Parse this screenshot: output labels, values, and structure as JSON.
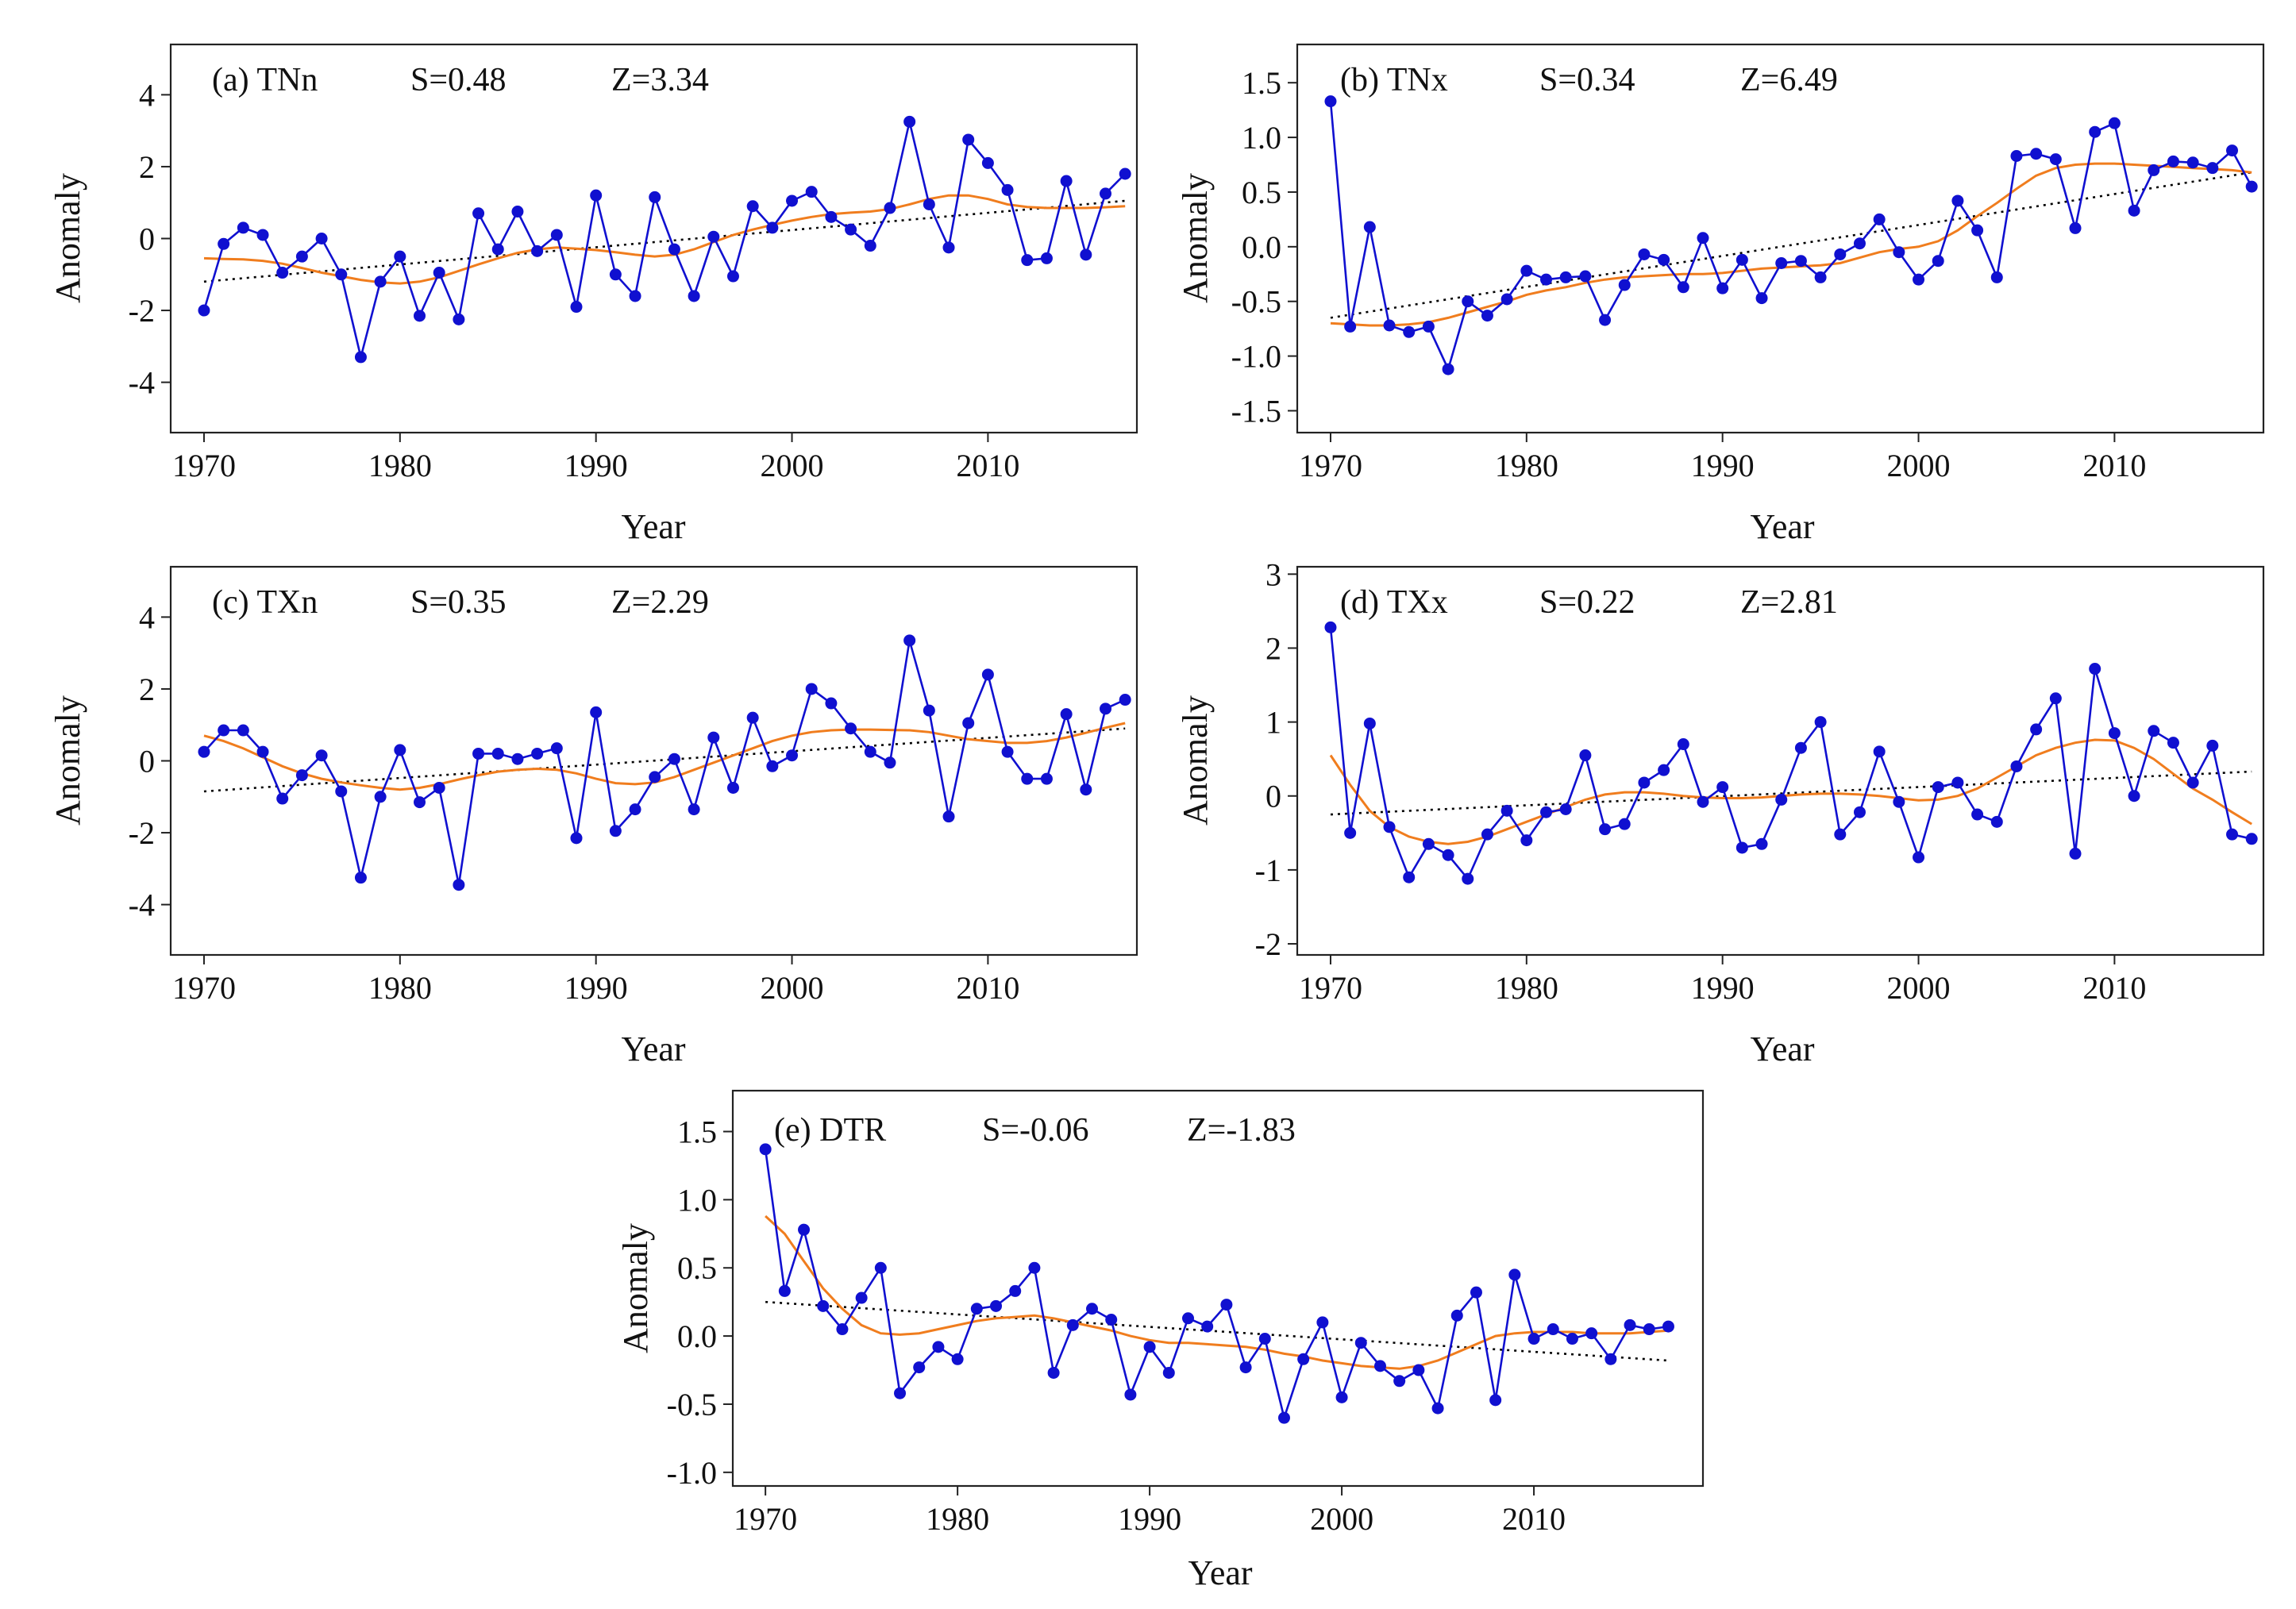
{
  "colors": {
    "observed": "#1010d0",
    "smooth": "#f07d1e",
    "trend": "#000000",
    "axis": "#222222"
  },
  "chart_data": [
    {
      "type": "line",
      "id": "a",
      "title": "(a) TNn",
      "s_text": "S=0.48",
      "z_text": "Z=3.34",
      "xlabel": "Year",
      "ylabel": "Anomaly",
      "xlim": [
        1968.3,
        2017.6
      ],
      "ylim": [
        -5.4,
        5.4
      ],
      "xticks": [
        1970,
        1980,
        1990,
        2000,
        2010
      ],
      "yticks": [
        "-4",
        "-2",
        "0",
        "2",
        "4"
      ],
      "x": [
        1970,
        1971,
        1972,
        1973,
        1974,
        1975,
        1976,
        1977,
        1978,
        1979,
        1980,
        1981,
        1982,
        1983,
        1984,
        1985,
        1986,
        1987,
        1988,
        1989,
        1990,
        1991,
        1992,
        1993,
        1994,
        1995,
        1996,
        1997,
        1998,
        1999,
        2000,
        2001,
        2002,
        2003,
        2004,
        2005,
        2006,
        2007,
        2008,
        2009,
        2010,
        2011,
        2012,
        2013,
        2014,
        2015,
        2016,
        2017
      ],
      "values": [
        -2.0,
        -0.15,
        0.3,
        0.1,
        -0.95,
        -0.5,
        0.0,
        -1.0,
        -3.3,
        -1.2,
        -0.5,
        -2.15,
        -0.95,
        -2.25,
        0.7,
        -0.3,
        0.75,
        -0.35,
        0.1,
        -1.9,
        1.2,
        -1.0,
        -1.6,
        1.15,
        -0.3,
        -1.6,
        0.05,
        -1.05,
        0.9,
        0.3,
        1.05,
        1.3,
        0.6,
        0.25,
        -0.2,
        0.85,
        3.25,
        0.95,
        -0.25,
        2.75,
        2.1,
        1.35,
        -0.6,
        -0.55,
        1.6,
        -0.45,
        1.25,
        1.8
      ],
      "smooth": [
        -0.55,
        -0.57,
        -0.58,
        -0.62,
        -0.7,
        -0.82,
        -0.95,
        -1.05,
        -1.15,
        -1.22,
        -1.25,
        -1.2,
        -1.08,
        -0.9,
        -0.72,
        -0.55,
        -0.4,
        -0.3,
        -0.25,
        -0.28,
        -0.32,
        -0.38,
        -0.45,
        -0.5,
        -0.45,
        -0.3,
        -0.1,
        0.1,
        0.25,
        0.38,
        0.5,
        0.6,
        0.68,
        0.72,
        0.75,
        0.82,
        0.95,
        1.1,
        1.2,
        1.2,
        1.1,
        0.95,
        0.88,
        0.85,
        0.85,
        0.85,
        0.87,
        0.9
      ],
      "trend": [
        [
          1970,
          -1.2
        ],
        [
          2017,
          1.05
        ]
      ]
    },
    {
      "type": "line",
      "id": "b",
      "title": "(b) TNx",
      "s_text": "S=0.34",
      "z_text": "Z=6.49",
      "xlabel": "Year",
      "ylabel": "Anomaly",
      "xlim": [
        1968.3,
        2017.6
      ],
      "ylim": [
        -1.7,
        1.85
      ],
      "xticks": [
        1970,
        1980,
        1990,
        2000,
        2010
      ],
      "yticks": [
        "1.5",
        "1.0",
        "0.5",
        "0.0",
        "-0.5",
        "-1.0",
        "-1.5"
      ],
      "x": [
        1970,
        1971,
        1972,
        1973,
        1974,
        1975,
        1976,
        1977,
        1978,
        1979,
        1980,
        1981,
        1982,
        1983,
        1984,
        1985,
        1986,
        1987,
        1988,
        1989,
        1990,
        1991,
        1992,
        1993,
        1994,
        1995,
        1996,
        1997,
        1998,
        1999,
        2000,
        2001,
        2002,
        2003,
        2004,
        2005,
        2006,
        2007,
        2008,
        2009,
        2010,
        2011,
        2012,
        2013,
        2014,
        2015,
        2016,
        2017
      ],
      "values": [
        1.33,
        -0.73,
        0.18,
        -0.72,
        -0.78,
        -0.73,
        -1.12,
        -0.5,
        -0.63,
        -0.48,
        -0.22,
        -0.3,
        -0.28,
        -0.27,
        -0.67,
        -0.35,
        -0.07,
        -0.12,
        -0.37,
        0.08,
        -0.38,
        -0.12,
        -0.47,
        -0.15,
        -0.13,
        -0.28,
        -0.07,
        0.03,
        0.25,
        -0.05,
        -0.3,
        -0.13,
        0.42,
        0.15,
        -0.28,
        0.83,
        0.85,
        0.8,
        0.17,
        1.05,
        1.13,
        0.33,
        0.7,
        0.78,
        0.77,
        0.72,
        0.88,
        0.55
      ],
      "smooth": [
        -0.7,
        -0.71,
        -0.72,
        -0.72,
        -0.71,
        -0.69,
        -0.65,
        -0.6,
        -0.55,
        -0.5,
        -0.44,
        -0.4,
        -0.37,
        -0.33,
        -0.3,
        -0.28,
        -0.27,
        -0.26,
        -0.25,
        -0.25,
        -0.24,
        -0.22,
        -0.2,
        -0.19,
        -0.18,
        -0.17,
        -0.15,
        -0.1,
        -0.05,
        -0.02,
        0.0,
        0.05,
        0.15,
        0.28,
        0.4,
        0.53,
        0.65,
        0.72,
        0.75,
        0.76,
        0.76,
        0.75,
        0.74,
        0.73,
        0.72,
        0.71,
        0.7,
        0.68
      ],
      "trend": [
        [
          1970,
          -0.65
        ],
        [
          2017,
          0.68
        ]
      ]
    },
    {
      "type": "line",
      "id": "c",
      "title": "(c) TXn",
      "s_text": "S=0.35",
      "z_text": "Z=2.29",
      "xlabel": "Year",
      "ylabel": "Anomaly",
      "xlim": [
        1968.3,
        2017.6
      ],
      "ylim": [
        -5.4,
        5.4
      ],
      "xticks": [
        1970,
        1980,
        1990,
        2000,
        2010
      ],
      "yticks": [
        "-4",
        "-2",
        "0",
        "2",
        "4"
      ],
      "x": [
        1970,
        1971,
        1972,
        1973,
        1974,
        1975,
        1976,
        1977,
        1978,
        1979,
        1980,
        1981,
        1982,
        1983,
        1984,
        1985,
        1986,
        1987,
        1988,
        1989,
        1990,
        1991,
        1992,
        1993,
        1994,
        1995,
        1996,
        1997,
        1998,
        1999,
        2000,
        2001,
        2002,
        2003,
        2004,
        2005,
        2006,
        2007,
        2008,
        2009,
        2010,
        2011,
        2012,
        2013,
        2014,
        2015,
        2016,
        2017
      ],
      "values": [
        0.25,
        0.85,
        0.85,
        0.25,
        -1.05,
        -0.4,
        0.15,
        -0.85,
        -3.25,
        -1.0,
        0.3,
        -1.15,
        -0.75,
        -3.45,
        0.2,
        0.2,
        0.05,
        0.2,
        0.35,
        -2.15,
        1.35,
        -1.95,
        -1.35,
        -0.45,
        0.05,
        -1.35,
        0.65,
        -0.75,
        1.2,
        -0.15,
        0.15,
        2.0,
        1.6,
        0.9,
        0.25,
        -0.05,
        3.35,
        1.4,
        -1.55,
        1.05,
        2.4,
        0.25,
        -0.5,
        -0.5,
        1.3,
        -0.8,
        1.45,
        1.7
      ],
      "smooth": [
        0.7,
        0.55,
        0.35,
        0.1,
        -0.15,
        -0.35,
        -0.5,
        -0.6,
        -0.68,
        -0.75,
        -0.8,
        -0.75,
        -0.65,
        -0.52,
        -0.4,
        -0.3,
        -0.25,
        -0.22,
        -0.25,
        -0.35,
        -0.5,
        -0.62,
        -0.65,
        -0.6,
        -0.45,
        -0.25,
        -0.05,
        0.15,
        0.35,
        0.55,
        0.7,
        0.8,
        0.85,
        0.87,
        0.87,
        0.86,
        0.85,
        0.8,
        0.7,
        0.6,
        0.55,
        0.5,
        0.5,
        0.55,
        0.65,
        0.78,
        0.92,
        1.05
      ],
      "trend": [
        [
          1970,
          -0.85
        ],
        [
          2017,
          0.9
        ]
      ]
    },
    {
      "type": "line",
      "id": "d",
      "title": "(d) TXx",
      "s_text": "S=0.22",
      "z_text": "Z=2.81",
      "xlabel": "Year",
      "ylabel": "Anomaly",
      "xlim": [
        1968.3,
        2017.6
      ],
      "ylim": [
        -2.15,
        3.1
      ],
      "xticks": [
        1970,
        1980,
        1990,
        2000,
        2010
      ],
      "yticks": [
        "3",
        "2",
        "1",
        "0",
        "-1",
        "-2"
      ],
      "x": [
        1970,
        1971,
        1972,
        1973,
        1974,
        1975,
        1976,
        1977,
        1978,
        1979,
        1980,
        1981,
        1982,
        1983,
        1984,
        1985,
        1986,
        1987,
        1988,
        1989,
        1990,
        1991,
        1992,
        1993,
        1994,
        1995,
        1996,
        1997,
        1998,
        1999,
        2000,
        2001,
        2002,
        2003,
        2004,
        2005,
        2006,
        2007,
        2008,
        2009,
        2010,
        2011,
        2012,
        2013,
        2014,
        2015,
        2016,
        2017
      ],
      "values": [
        2.28,
        -0.5,
        0.98,
        -0.42,
        -1.1,
        -0.65,
        -0.8,
        -1.12,
        -0.52,
        -0.2,
        -0.6,
        -0.22,
        -0.18,
        0.55,
        -0.45,
        -0.38,
        0.18,
        0.35,
        0.7,
        -0.08,
        0.12,
        -0.7,
        -0.65,
        -0.05,
        0.65,
        1.0,
        -0.52,
        -0.22,
        0.6,
        -0.08,
        -0.83,
        0.12,
        0.18,
        -0.25,
        -0.35,
        0.4,
        0.9,
        1.32,
        -0.78,
        1.72,
        0.85,
        0.0,
        0.88,
        0.72,
        0.18,
        0.68,
        -0.52,
        -0.58
      ],
      "smooth": [
        0.55,
        0.15,
        -0.2,
        -0.42,
        -0.55,
        -0.62,
        -0.65,
        -0.62,
        -0.55,
        -0.45,
        -0.35,
        -0.25,
        -0.15,
        -0.05,
        0.02,
        0.05,
        0.05,
        0.03,
        0.0,
        -0.02,
        -0.03,
        -0.03,
        -0.02,
        0.0,
        0.02,
        0.03,
        0.03,
        0.02,
        0.0,
        -0.03,
        -0.06,
        -0.05,
        0.0,
        0.1,
        0.25,
        0.4,
        0.55,
        0.65,
        0.72,
        0.76,
        0.75,
        0.65,
        0.5,
        0.3,
        0.1,
        -0.05,
        -0.22,
        -0.38
      ],
      "trend": [
        [
          1970,
          -0.25
        ],
        [
          2017,
          0.33
        ]
      ]
    },
    {
      "type": "line",
      "id": "e",
      "title": "(e) DTR",
      "s_text": "S=-0.06",
      "z_text": "Z=-1.83",
      "xlabel": "Year",
      "ylabel": "Anomaly",
      "xlim": [
        1968.3,
        2018.8
      ],
      "ylim": [
        -1.1,
        1.8
      ],
      "xticks": [
        1970,
        1980,
        1990,
        2000,
        2010
      ],
      "yticks": [
        "1.5",
        "1.0",
        "0.5",
        "0.0",
        "-0.5",
        "-1.0"
      ],
      "x": [
        1970,
        1971,
        1972,
        1973,
        1974,
        1975,
        1976,
        1977,
        1978,
        1979,
        1980,
        1981,
        1982,
        1983,
        1984,
        1985,
        1986,
        1987,
        1988,
        1989,
        1990,
        1991,
        1992,
        1993,
        1994,
        1995,
        1996,
        1997,
        1998,
        1999,
        2000,
        2001,
        2002,
        2003,
        2004,
        2005,
        2006,
        2007,
        2008,
        2009,
        2010,
        2011,
        2012,
        2013,
        2014,
        2015,
        2016,
        2017
      ],
      "values": [
        1.37,
        0.33,
        0.78,
        0.22,
        0.05,
        0.28,
        0.5,
        -0.42,
        -0.23,
        -0.08,
        -0.17,
        0.2,
        0.22,
        0.33,
        0.5,
        -0.27,
        0.08,
        0.2,
        0.12,
        -0.43,
        -0.08,
        -0.27,
        0.13,
        0.07,
        0.23,
        -0.23,
        -0.02,
        -0.6,
        -0.17,
        0.1,
        -0.45,
        -0.05,
        -0.22,
        -0.33,
        -0.25,
        -0.53,
        0.15,
        0.32,
        -0.47,
        0.45,
        -0.02,
        0.05,
        -0.02,
        0.02,
        -0.17,
        0.08,
        0.05,
        0.07
      ],
      "smooth": [
        0.88,
        0.75,
        0.55,
        0.35,
        0.2,
        0.08,
        0.02,
        0.01,
        0.02,
        0.05,
        0.08,
        0.11,
        0.13,
        0.14,
        0.15,
        0.13,
        0.1,
        0.07,
        0.04,
        0.0,
        -0.03,
        -0.05,
        -0.05,
        -0.06,
        -0.07,
        -0.08,
        -0.1,
        -0.13,
        -0.15,
        -0.18,
        -0.2,
        -0.22,
        -0.23,
        -0.24,
        -0.22,
        -0.18,
        -0.12,
        -0.06,
        0.0,
        0.02,
        0.03,
        0.03,
        0.03,
        0.02,
        0.02,
        0.02,
        0.03,
        0.04
      ],
      "trend": [
        [
          1970,
          0.25
        ],
        [
          2017,
          -0.18
        ]
      ]
    }
  ]
}
